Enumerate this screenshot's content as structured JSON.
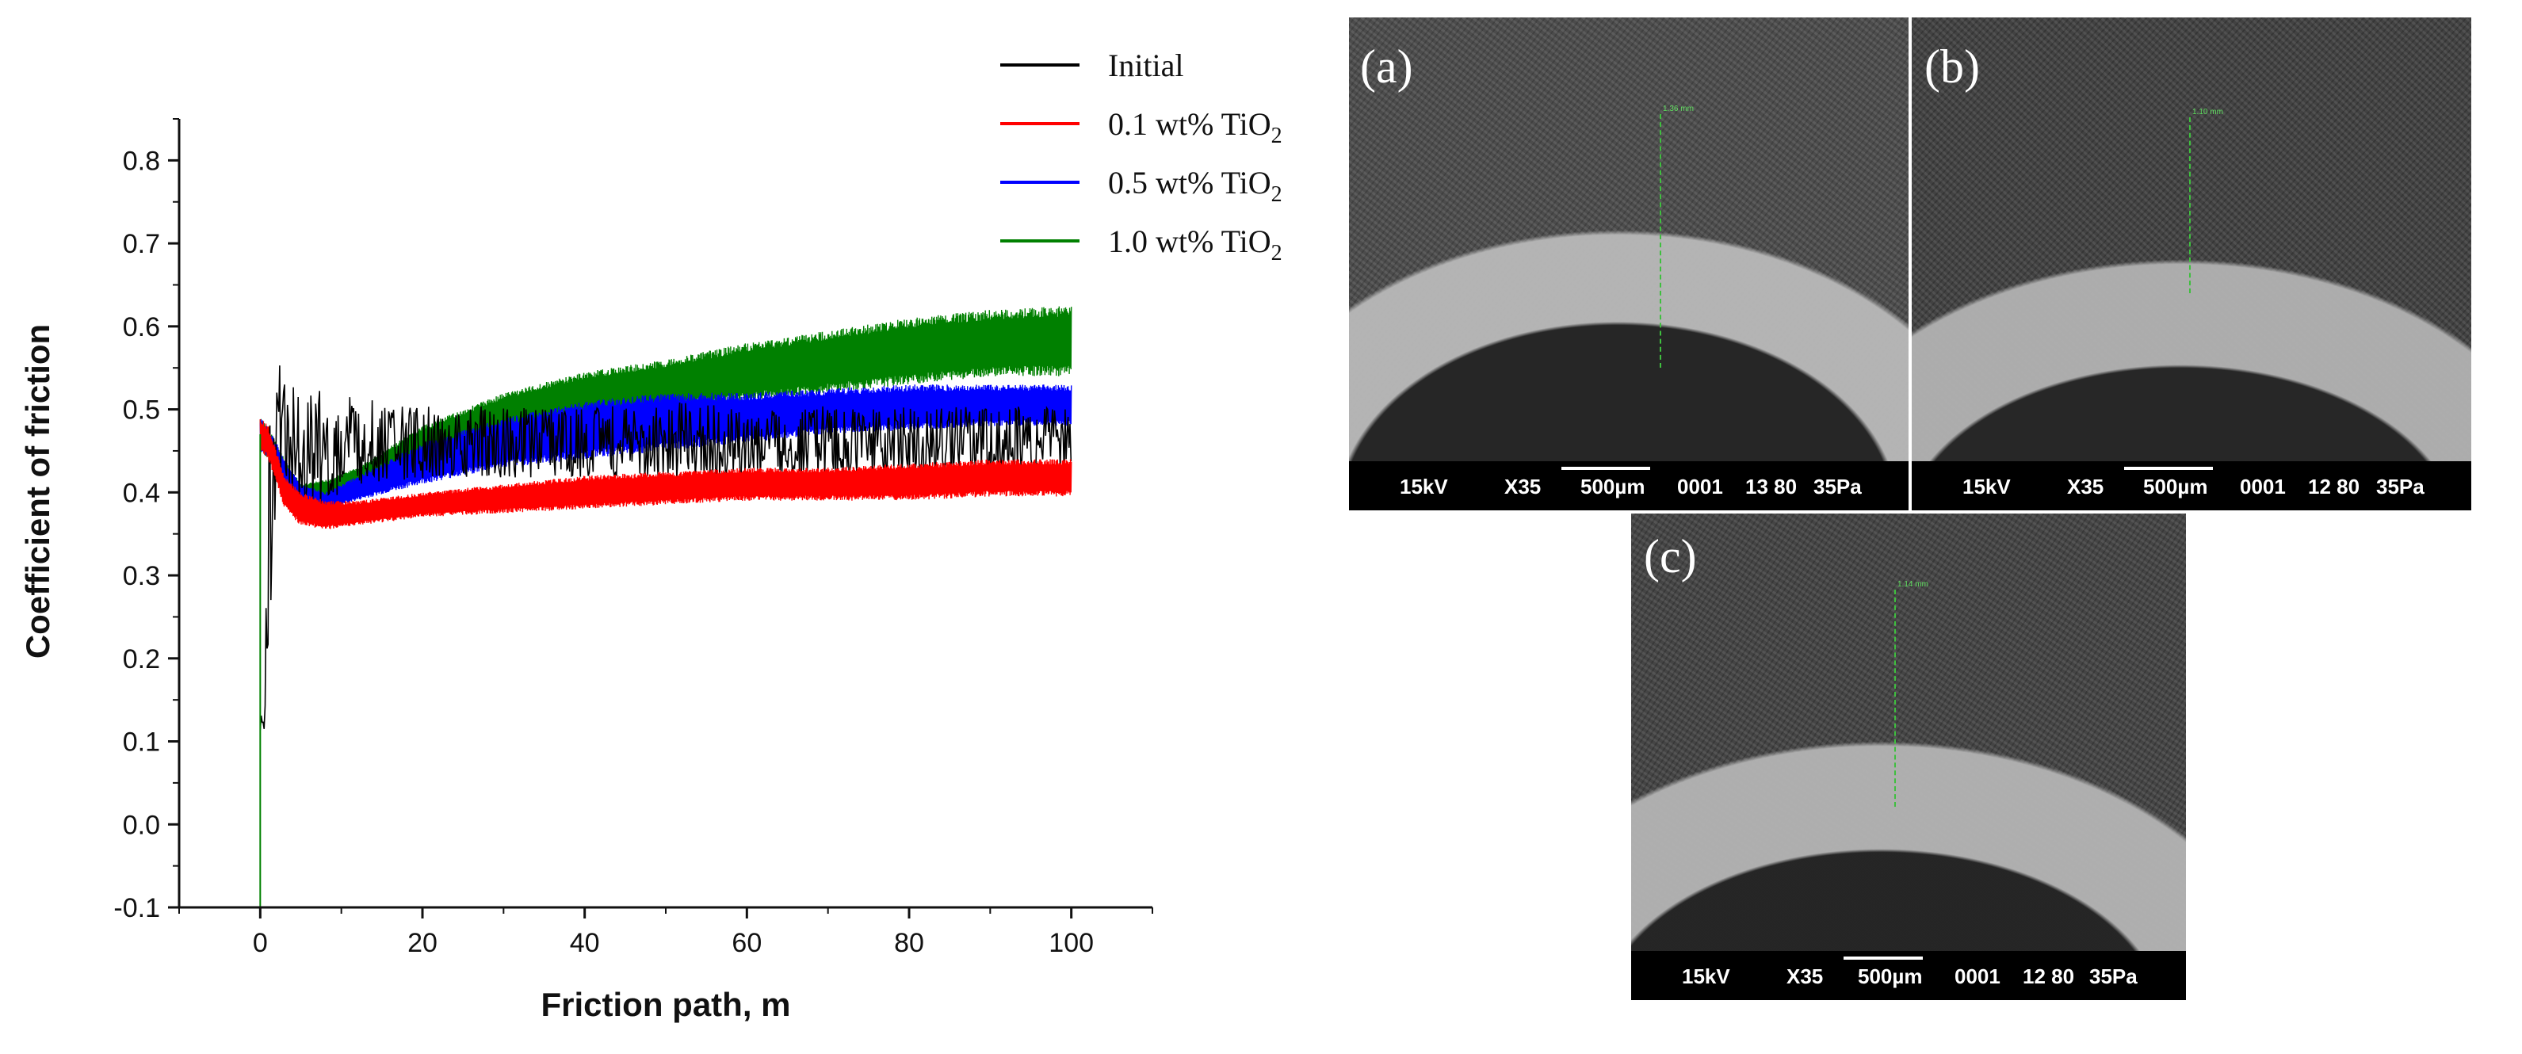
{
  "chart_data": {
    "type": "line",
    "xlabel": "Friction path, m",
    "ylabel": "Coefficient of friction",
    "xlim": [
      -10,
      110
    ],
    "ylim": [
      -0.1,
      0.85
    ],
    "xticks": [
      "0",
      "20",
      "40",
      "60",
      "80",
      "100"
    ],
    "xtick_values": [
      0,
      20,
      40,
      60,
      80,
      100
    ],
    "yticks": [
      "-0.1",
      "0.0",
      "0.1",
      "0.2",
      "0.3",
      "0.4",
      "0.5",
      "0.6",
      "0.7",
      "0.8"
    ],
    "ytick_values": [
      -0.1,
      0.0,
      0.1,
      0.2,
      0.3,
      0.4,
      0.5,
      0.6,
      0.7,
      0.8
    ],
    "legend_position": "top-right",
    "series": [
      {
        "name": "Initial",
        "legend_main": "Initial",
        "legend_sub": "",
        "color": "#000000",
        "x": [
          0,
          0.5,
          1,
          2,
          3,
          5,
          8,
          12,
          20,
          30,
          40,
          50,
          60,
          70,
          80,
          90,
          100
        ],
        "y_mid": [
          0.12,
          0.12,
          0.35,
          0.5,
          0.47,
          0.46,
          0.45,
          0.46,
          0.46,
          0.46,
          0.46,
          0.46,
          0.46,
          0.46,
          0.46,
          0.46,
          0.46
        ],
        "y_low": [
          0.11,
          0.11,
          0.2,
          0.42,
          0.42,
          0.4,
          0.4,
          0.41,
          0.42,
          0.42,
          0.42,
          0.42,
          0.42,
          0.42,
          0.42,
          0.42,
          0.42
        ],
        "y_high": [
          0.13,
          0.14,
          0.5,
          0.59,
          0.53,
          0.54,
          0.53,
          0.51,
          0.5,
          0.5,
          0.5,
          0.51,
          0.5,
          0.5,
          0.5,
          0.5,
          0.5
        ]
      },
      {
        "name": "0.1 wt% TiO2",
        "legend_main": "0.1 wt% TiO",
        "legend_sub": "2",
        "color": "#ff0000",
        "x": [
          0,
          1,
          3,
          5,
          8,
          12,
          20,
          30,
          40,
          50,
          60,
          70,
          80,
          90,
          100
        ],
        "y_mid": [
          0.47,
          0.46,
          0.4,
          0.38,
          0.37,
          0.375,
          0.385,
          0.395,
          0.4,
          0.405,
          0.41,
          0.41,
          0.41,
          0.415,
          0.415
        ],
        "y_low": [
          0.45,
          0.44,
          0.38,
          0.36,
          0.355,
          0.36,
          0.37,
          0.375,
          0.38,
          0.385,
          0.39,
          0.39,
          0.39,
          0.395,
          0.395
        ],
        "y_high": [
          0.49,
          0.48,
          0.42,
          0.4,
          0.39,
          0.39,
          0.4,
          0.41,
          0.42,
          0.425,
          0.43,
          0.43,
          0.435,
          0.44,
          0.44
        ]
      },
      {
        "name": "0.5 wt% TiO2",
        "legend_main": "0.5 wt% TiO",
        "legend_sub": "2",
        "color": "#0000ff",
        "x": [
          0,
          1,
          3,
          5,
          8,
          12,
          20,
          30,
          40,
          50,
          60,
          70,
          80,
          90,
          100
        ],
        "y_mid": [
          0.47,
          0.46,
          0.42,
          0.395,
          0.39,
          0.41,
          0.44,
          0.465,
          0.475,
          0.485,
          0.495,
          0.5,
          0.505,
          0.51,
          0.51
        ],
        "y_low": [
          0.45,
          0.44,
          0.4,
          0.385,
          0.38,
          0.39,
          0.41,
          0.43,
          0.44,
          0.45,
          0.46,
          0.47,
          0.475,
          0.48,
          0.48
        ],
        "y_high": [
          0.49,
          0.48,
          0.44,
          0.41,
          0.4,
          0.42,
          0.46,
          0.49,
          0.51,
          0.52,
          0.52,
          0.525,
          0.53,
          0.53,
          0.53
        ]
      },
      {
        "name": "1.0 wt% TiO2",
        "legend_main": "1.0 wt% TiO",
        "legend_sub": "2",
        "color": "#008000",
        "x": [
          0,
          1,
          3,
          5,
          8,
          12,
          20,
          30,
          40,
          50,
          60,
          70,
          80,
          90,
          100
        ],
        "y_mid": [
          0.47,
          0.46,
          0.42,
          0.4,
          0.4,
          0.42,
          0.46,
          0.495,
          0.515,
          0.53,
          0.545,
          0.555,
          0.565,
          0.575,
          0.58
        ],
        "y_low": [
          0.45,
          0.44,
          0.4,
          0.39,
          0.39,
          0.41,
          0.44,
          0.47,
          0.49,
          0.5,
          0.51,
          0.52,
          0.53,
          0.54,
          0.54
        ],
        "y_high": [
          0.49,
          0.48,
          0.44,
          0.41,
          0.415,
          0.43,
          0.48,
          0.52,
          0.545,
          0.56,
          0.58,
          0.595,
          0.61,
          0.62,
          0.625
        ]
      }
    ]
  },
  "sem_panels": [
    {
      "label": "(a)",
      "voltage": "15kV",
      "magnification": "X35",
      "scale": "500µm",
      "image_no": "0001",
      "settings": "13 80",
      "pressure": "35Pa",
      "measurement": "1.36 mm"
    },
    {
      "label": "(b)",
      "voltage": "15kV",
      "magnification": "X35",
      "scale": "500µm",
      "image_no": "0001",
      "settings": "12 80",
      "pressure": "35Pa",
      "measurement": "1.10 mm"
    },
    {
      "label": "(c)",
      "voltage": "15kV",
      "magnification": "X35",
      "scale": "500µm",
      "image_no": "0001",
      "settings": "12 80",
      "pressure": "35Pa",
      "measurement": "1.14 mm"
    }
  ]
}
